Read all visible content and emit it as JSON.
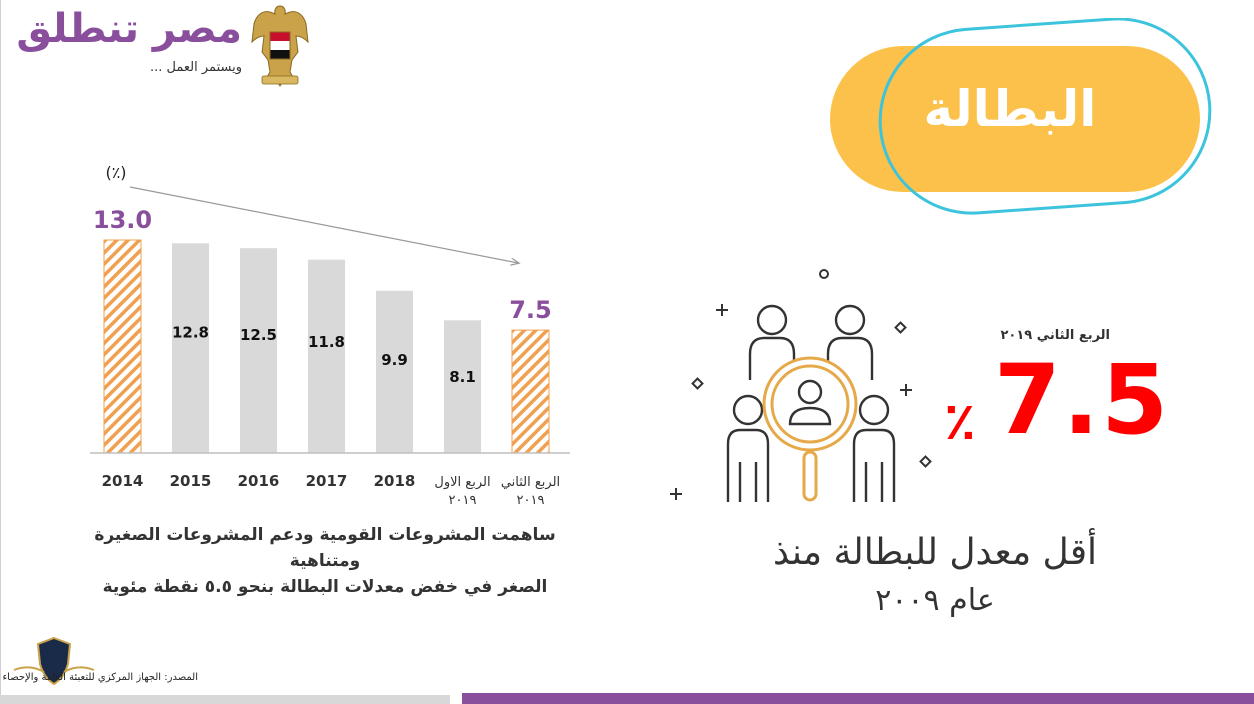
{
  "logo": {
    "title": "مصر تنطلق",
    "subtitle": "ويستمر العمل ..."
  },
  "slide_title": "البطالة",
  "chart_data": {
    "type": "bar",
    "unit_label": "(٪)",
    "categories": [
      "2014",
      "2015",
      "2016",
      "2017",
      "2018",
      "الربع الاول ٢٠١٩",
      "الربع الثاني ٢٠١٩"
    ],
    "category_lines": [
      [
        "2014"
      ],
      [
        "2015"
      ],
      [
        "2016"
      ],
      [
        "2017"
      ],
      [
        "2018"
      ],
      [
        "الربع الاول",
        "٢٠١٩"
      ],
      [
        "الربع الثاني",
        "٢٠١٩"
      ]
    ],
    "values": [
      13.0,
      12.8,
      12.5,
      11.8,
      9.9,
      8.1,
      7.5
    ],
    "value_labels": [
      "13.0",
      "12.8",
      "12.5",
      "11.8",
      "9.9",
      "8.1",
      "7.5"
    ],
    "highlighted": [
      true,
      false,
      false,
      false,
      false,
      false,
      true
    ],
    "ylim": [
      0,
      13.0
    ],
    "trend_arrow": "down",
    "colors": {
      "bar": "#d9d9d9",
      "highlight_stripe": "#f0a050",
      "highlight_label": "#8a4f9c",
      "axis": "#bfbfbf"
    }
  },
  "caption": {
    "line1": "ساهمت المشروعات القومية ودعم المشروعات الصغيرة ومتناهية",
    "line2": "الصغر في خفض معدلات البطالة بنحو ٥.٥ نقطة مئوية"
  },
  "highlight": {
    "quarter": "الربع الثاني ٢٠١٩",
    "value": "7.5",
    "percent": "٪",
    "headline_line1": "أقل معدل للبطالة منذ",
    "headline_line2": "عام ٢٠٠٩"
  },
  "icons": {
    "people": "people-magnifier-icon",
    "logo": "eagle-emblem-icon"
  },
  "footer": {
    "source": "المصدر: الجهاز المركزي للتعبئة العامة والإحصاء"
  },
  "colors": {
    "accent_purple": "#8a4f9c",
    "pill_yellow": "#fbc14b",
    "pill_outline": "#3cc4dc",
    "red": "#ff0000",
    "icon_orange": "#e6a94a"
  }
}
